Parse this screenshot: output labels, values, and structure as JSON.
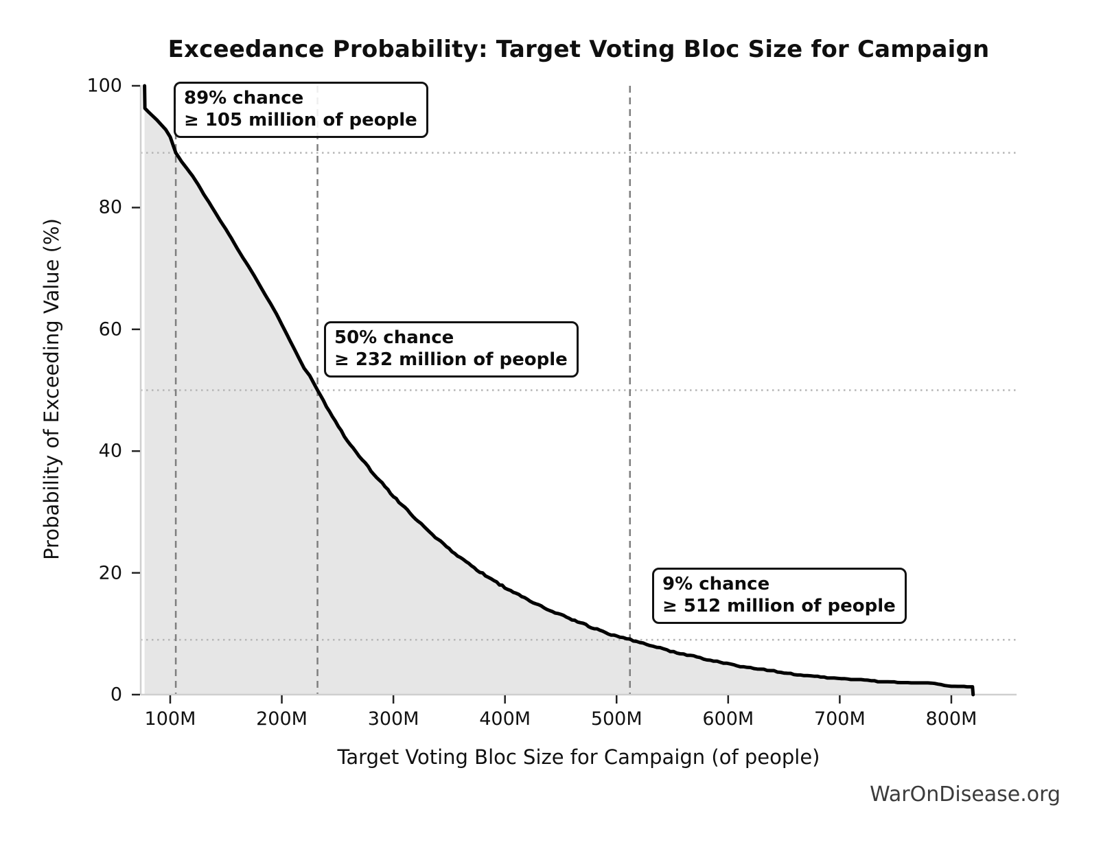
{
  "title": "Exceedance Probability: Target Voting Bloc Size for Campaign",
  "watermark": "WarOnDisease.org",
  "colors": {
    "curve": "#000000",
    "area_fill": "#e6e6e6",
    "dashed_vline": "#7e7e7e",
    "dotted_hline": "#b5b5b5",
    "spine": "#cfcfcf",
    "tick_mark": "#222222",
    "text": "#111111",
    "watermark_text": "#3b3b3b",
    "annotation_border": "#111111"
  },
  "chart_data": {
    "type": "area",
    "subtype": "exceedance-probability-ccdf",
    "title": "Exceedance Probability: Target Voting Bloc Size for Campaign",
    "xlabel": "Target Voting Bloc Size for Campaign (of people)",
    "ylabel": "Probability of Exceeding Value (%)",
    "xlim_millions": [
      76,
      858
    ],
    "ylim_pct": [
      0,
      100
    ],
    "legend": "none",
    "grid": "reference-lines-only",
    "x_ticks": [
      {
        "v": 100,
        "label": "100M"
      },
      {
        "v": 200,
        "label": "200M"
      },
      {
        "v": 300,
        "label": "300M"
      },
      {
        "v": 400,
        "label": "400M"
      },
      {
        "v": 500,
        "label": "500M"
      },
      {
        "v": 600,
        "label": "600M"
      },
      {
        "v": 700,
        "label": "700M"
      },
      {
        "v": 800,
        "label": "800M"
      }
    ],
    "y_ticks": [
      {
        "v": 0,
        "label": "0"
      },
      {
        "v": 20,
        "label": "20"
      },
      {
        "v": 40,
        "label": "40"
      },
      {
        "v": 60,
        "label": "60"
      },
      {
        "v": 80,
        "label": "80"
      },
      {
        "v": 100,
        "label": "100"
      }
    ],
    "reference_lines": {
      "vertical_at_millions": [
        105,
        232,
        512
      ],
      "horizontal_at_pct": [
        89,
        50,
        9
      ]
    },
    "annotations": [
      {
        "chance_pct": 89,
        "threshold_millions": 105,
        "line1": "89% chance",
        "line2": "≥ 105 million of people"
      },
      {
        "chance_pct": 50,
        "threshold_millions": 232,
        "line1": "50% chance",
        "line2": "≥ 232 million of people"
      },
      {
        "chance_pct": 9,
        "threshold_millions": 512,
        "line1": "9% chance",
        "line2": "≥ 512 million of people"
      }
    ],
    "curve_points_millions_pct": [
      [
        77,
        100
      ],
      [
        77.3,
        96.3
      ],
      [
        80,
        95.8
      ],
      [
        84,
        95.1
      ],
      [
        88,
        94.4
      ],
      [
        92,
        93.6
      ],
      [
        96,
        92.8
      ],
      [
        100,
        91.6
      ],
      [
        105,
        89.0
      ],
      [
        110,
        87.6
      ],
      [
        115,
        86.4
      ],
      [
        120,
        85.2
      ],
      [
        125,
        83.8
      ],
      [
        130,
        82.2
      ],
      [
        135,
        80.8
      ],
      [
        140,
        79.3
      ],
      [
        145,
        77.8
      ],
      [
        150,
        76.4
      ],
      [
        155,
        74.9
      ],
      [
        160,
        73.3
      ],
      [
        165,
        71.8
      ],
      [
        170,
        70.4
      ],
      [
        175,
        68.9
      ],
      [
        180,
        67.3
      ],
      [
        185,
        65.7
      ],
      [
        190,
        64.2
      ],
      [
        195,
        62.6
      ],
      [
        200,
        60.8
      ],
      [
        205,
        59.0
      ],
      [
        210,
        57.2
      ],
      [
        215,
        55.4
      ],
      [
        220,
        53.6
      ],
      [
        225,
        52.4
      ],
      [
        232,
        50.0
      ],
      [
        240,
        47.3
      ],
      [
        248,
        44.8
      ],
      [
        256,
        42.5
      ],
      [
        264,
        40.5
      ],
      [
        272,
        38.6
      ],
      [
        280,
        36.8
      ],
      [
        290,
        34.7
      ],
      [
        300,
        32.6
      ],
      [
        310,
        30.7
      ],
      [
        320,
        28.9
      ],
      [
        330,
        27.2
      ],
      [
        340,
        25.5
      ],
      [
        350,
        23.9
      ],
      [
        360,
        22.5
      ],
      [
        370,
        21.1
      ],
      [
        380,
        19.9
      ],
      [
        390,
        18.7
      ],
      [
        400,
        17.6
      ],
      [
        410,
        16.6
      ],
      [
        420,
        15.6
      ],
      [
        430,
        14.7
      ],
      [
        440,
        13.9
      ],
      [
        450,
        13.1
      ],
      [
        460,
        12.4
      ],
      [
        470,
        11.6
      ],
      [
        480,
        10.9
      ],
      [
        490,
        10.2
      ],
      [
        500,
        9.6
      ],
      [
        512,
        9.0
      ],
      [
        524,
        8.4
      ],
      [
        536,
        7.8
      ],
      [
        548,
        7.2
      ],
      [
        560,
        6.7
      ],
      [
        572,
        6.2
      ],
      [
        584,
        5.7
      ],
      [
        596,
        5.2
      ],
      [
        608,
        4.8
      ],
      [
        620,
        4.4
      ],
      [
        632,
        4.1
      ],
      [
        644,
        3.8
      ],
      [
        656,
        3.5
      ],
      [
        668,
        3.2
      ],
      [
        680,
        3.0
      ],
      [
        692,
        2.8
      ],
      [
        704,
        2.6
      ],
      [
        716,
        2.4
      ],
      [
        728,
        2.3
      ],
      [
        740,
        2.2
      ],
      [
        752,
        2.1
      ],
      [
        764,
        2.0
      ],
      [
        776,
        1.9
      ],
      [
        788,
        1.8
      ],
      [
        794,
        1.5
      ],
      [
        806,
        1.4
      ],
      [
        814,
        1.35
      ],
      [
        819,
        1.3
      ],
      [
        819.5,
        0
      ]
    ]
  }
}
